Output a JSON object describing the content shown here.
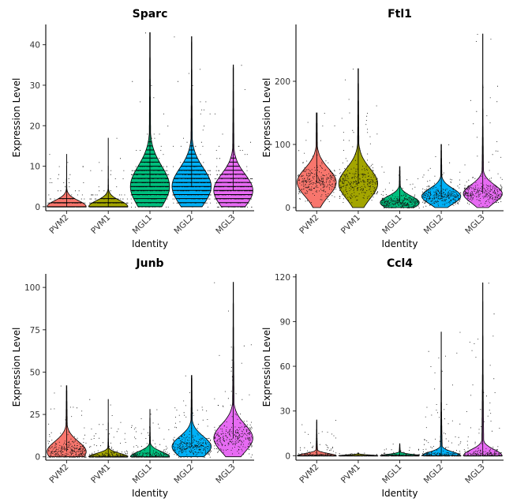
{
  "chart_data": [
    {
      "type": "violin",
      "title": "Sparc",
      "xlabel": "Identity",
      "ylabel": "Expression Level",
      "categories": [
        "PVM2",
        "PVM1",
        "MGL1",
        "MGL2",
        "MGL3"
      ],
      "yticks": [
        0,
        10,
        20,
        30,
        40
      ],
      "ylim": [
        -1,
        45
      ],
      "colors": [
        "#F8766D",
        "#A3A500",
        "#00BF7D",
        "#00B0F6",
        "#E76BF3"
      ],
      "discrete_levels": true,
      "series": [
        {
          "name": "PVM2",
          "max": 13,
          "mode": 0,
          "spread": 1.5,
          "q95": 2
        },
        {
          "name": "PVM1",
          "max": 17,
          "mode": 0,
          "spread": 1.5,
          "q95": 2
        },
        {
          "name": "MGL1",
          "max": 43,
          "mode": 5,
          "spread": 5,
          "q95": 22
        },
        {
          "name": "MGL2",
          "max": 42,
          "mode": 5,
          "spread": 4.5,
          "q95": 20
        },
        {
          "name": "MGL3",
          "max": 35,
          "mode": 4,
          "spread": 4,
          "q95": 17
        }
      ]
    },
    {
      "type": "violin",
      "title": "Ftl1",
      "xlabel": "Identity",
      "ylabel": "Expression Level",
      "categories": [
        "PVM2",
        "PVM1",
        "MGL1",
        "MGL2",
        "MGL3"
      ],
      "yticks": [
        0,
        100,
        200
      ],
      "ylim": [
        -5,
        290
      ],
      "colors": [
        "#F8766D",
        "#A3A500",
        "#00BF7D",
        "#00B0F6",
        "#E76BF3"
      ],
      "discrete_levels": false,
      "series": [
        {
          "name": "PVM2",
          "max": 150,
          "mode": 40,
          "spread": 22,
          "q95": 95
        },
        {
          "name": "PVM1",
          "max": 220,
          "mode": 38,
          "spread": 24,
          "q95": 110
        },
        {
          "name": "MGL1",
          "max": 65,
          "mode": 8,
          "spread": 10,
          "q95": 35
        },
        {
          "name": "MGL2",
          "max": 100,
          "mode": 18,
          "spread": 12,
          "q95": 50
        },
        {
          "name": "MGL3",
          "max": 275,
          "mode": 22,
          "spread": 14,
          "q95": 75
        }
      ]
    },
    {
      "type": "violin",
      "title": "Junb",
      "xlabel": "Identity",
      "ylabel": "Expression Level",
      "categories": [
        "PVM2",
        "PVM1",
        "MGL1",
        "MGL2",
        "MGL3"
      ],
      "yticks": [
        0,
        25,
        50,
        75,
        100
      ],
      "ylim": [
        -2,
        108
      ],
      "colors": [
        "#F8766D",
        "#A3A500",
        "#00BF7D",
        "#00B0F6",
        "#E76BF3"
      ],
      "discrete_levels": false,
      "series": [
        {
          "name": "PVM2",
          "max": 42,
          "mode": 3,
          "spread": 6,
          "q95": 25
        },
        {
          "name": "PVM1",
          "max": 34,
          "mode": 0,
          "spread": 2,
          "q95": 6
        },
        {
          "name": "MGL1",
          "max": 28,
          "mode": 0,
          "spread": 3,
          "q95": 10
        },
        {
          "name": "MGL2",
          "max": 48,
          "mode": 6,
          "spread": 6,
          "q95": 28
        },
        {
          "name": "MGL3",
          "max": 103,
          "mode": 11,
          "spread": 8,
          "q95": 45
        }
      ]
    },
    {
      "type": "violin",
      "title": "Ccl4",
      "xlabel": "Identity",
      "ylabel": "Expression Level",
      "categories": [
        "PVM2",
        "PVM1",
        "MGL1",
        "MGL2",
        "MGL3"
      ],
      "yticks": [
        0,
        30,
        60,
        90,
        120
      ],
      "ylim": [
        -3,
        122
      ],
      "colors": [
        "#F8766D",
        "#A3A500",
        "#00BF7D",
        "#00B0F6",
        "#E76BF3"
      ],
      "discrete_levels": false,
      "series": [
        {
          "name": "PVM2",
          "max": 24,
          "mode": 0,
          "spread": 1.5,
          "q95": 10
        },
        {
          "name": "PVM1",
          "max": 2,
          "mode": 0,
          "spread": 0.5,
          "q95": 1
        },
        {
          "name": "MGL1",
          "max": 8,
          "mode": 0,
          "spread": 1,
          "q95": 4
        },
        {
          "name": "MGL2",
          "max": 83,
          "mode": 0,
          "spread": 2.5,
          "q95": 25
        },
        {
          "name": "MGL3",
          "max": 116,
          "mode": 0,
          "spread": 4,
          "q95": 45
        }
      ]
    }
  ]
}
